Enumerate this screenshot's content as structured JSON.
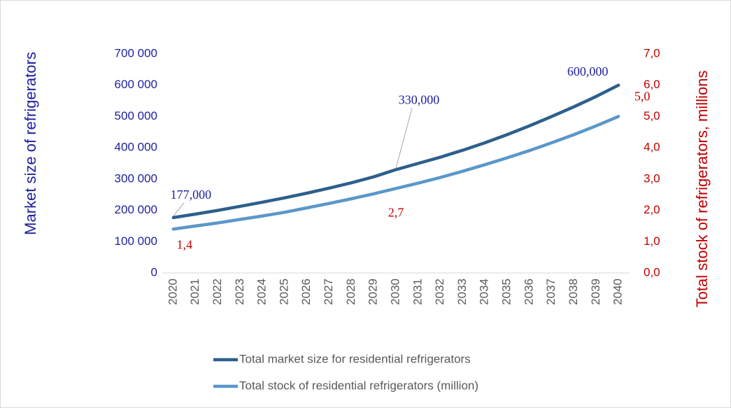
{
  "chart_data": {
    "type": "line",
    "y_title": "Market size of refrigerators",
    "y2_title": "Total stock of refrigerators, millions",
    "categories": [
      "2020",
      "2021",
      "2022",
      "2023",
      "2024",
      "2025",
      "2026",
      "2027",
      "2028",
      "2029",
      "2030",
      "2031",
      "2032",
      "2033",
      "2034",
      "2035",
      "2036",
      "2037",
      "2038",
      "2039",
      "2040"
    ],
    "ylim": [
      0,
      700000
    ],
    "yticks": [
      {
        "value": 0,
        "label": "0"
      },
      {
        "value": 100000,
        "label": "100 000"
      },
      {
        "value": 200000,
        "label": "200 000"
      },
      {
        "value": 300000,
        "label": "300 000"
      },
      {
        "value": 400000,
        "label": "400 000"
      },
      {
        "value": 500000,
        "label": "500 000"
      },
      {
        "value": 600000,
        "label": "600 000"
      },
      {
        "value": 700000,
        "label": "700 000"
      }
    ],
    "y2lim": [
      0,
      7
    ],
    "y2ticks": [
      {
        "value": 0,
        "label": "0,0"
      },
      {
        "value": 1,
        "label": "1,0"
      },
      {
        "value": 2,
        "label": "2,0"
      },
      {
        "value": 3,
        "label": "3,0"
      },
      {
        "value": 4,
        "label": "4,0"
      },
      {
        "value": 5,
        "label": "5,0"
      },
      {
        "value": 6,
        "label": "6,0"
      },
      {
        "value": 7,
        "label": "7,0"
      }
    ],
    "y_color": "#2020a0",
    "y2_color": "#c00000",
    "legend": "bottom",
    "series": [
      {
        "name": "Total market size for residential refrigerators",
        "color": "#2e5f8c",
        "label_color": "#2020a0",
        "values": [
          177000,
          188000,
          200000,
          213000,
          226000,
          240000,
          255000,
          271000,
          288000,
          307000,
          330000,
          350000,
          370000,
          392000,
          416000,
          442000,
          470000,
          500000,
          531000,
          564000,
          600000
        ],
        "value_labels": [
          "177,000",
          null,
          null,
          null,
          null,
          null,
          null,
          null,
          null,
          null,
          "330,000",
          null,
          null,
          null,
          null,
          null,
          null,
          null,
          null,
          null,
          "600,000"
        ]
      },
      {
        "name": "Total stock of residential refrigerators (million)",
        "color": "#5b97c9",
        "axis": "y2",
        "label_color": "#c00000",
        "values": [
          1.4,
          1.5,
          1.6,
          1.71,
          1.82,
          1.94,
          2.08,
          2.22,
          2.37,
          2.53,
          2.7,
          2.87,
          3.05,
          3.25,
          3.46,
          3.68,
          3.91,
          4.16,
          4.42,
          4.7,
          5.0
        ],
        "value_labels": [
          "1,4",
          null,
          null,
          null,
          null,
          null,
          null,
          null,
          null,
          null,
          "2,7",
          null,
          null,
          null,
          null,
          null,
          null,
          null,
          null,
          null,
          "5,0"
        ]
      }
    ]
  }
}
